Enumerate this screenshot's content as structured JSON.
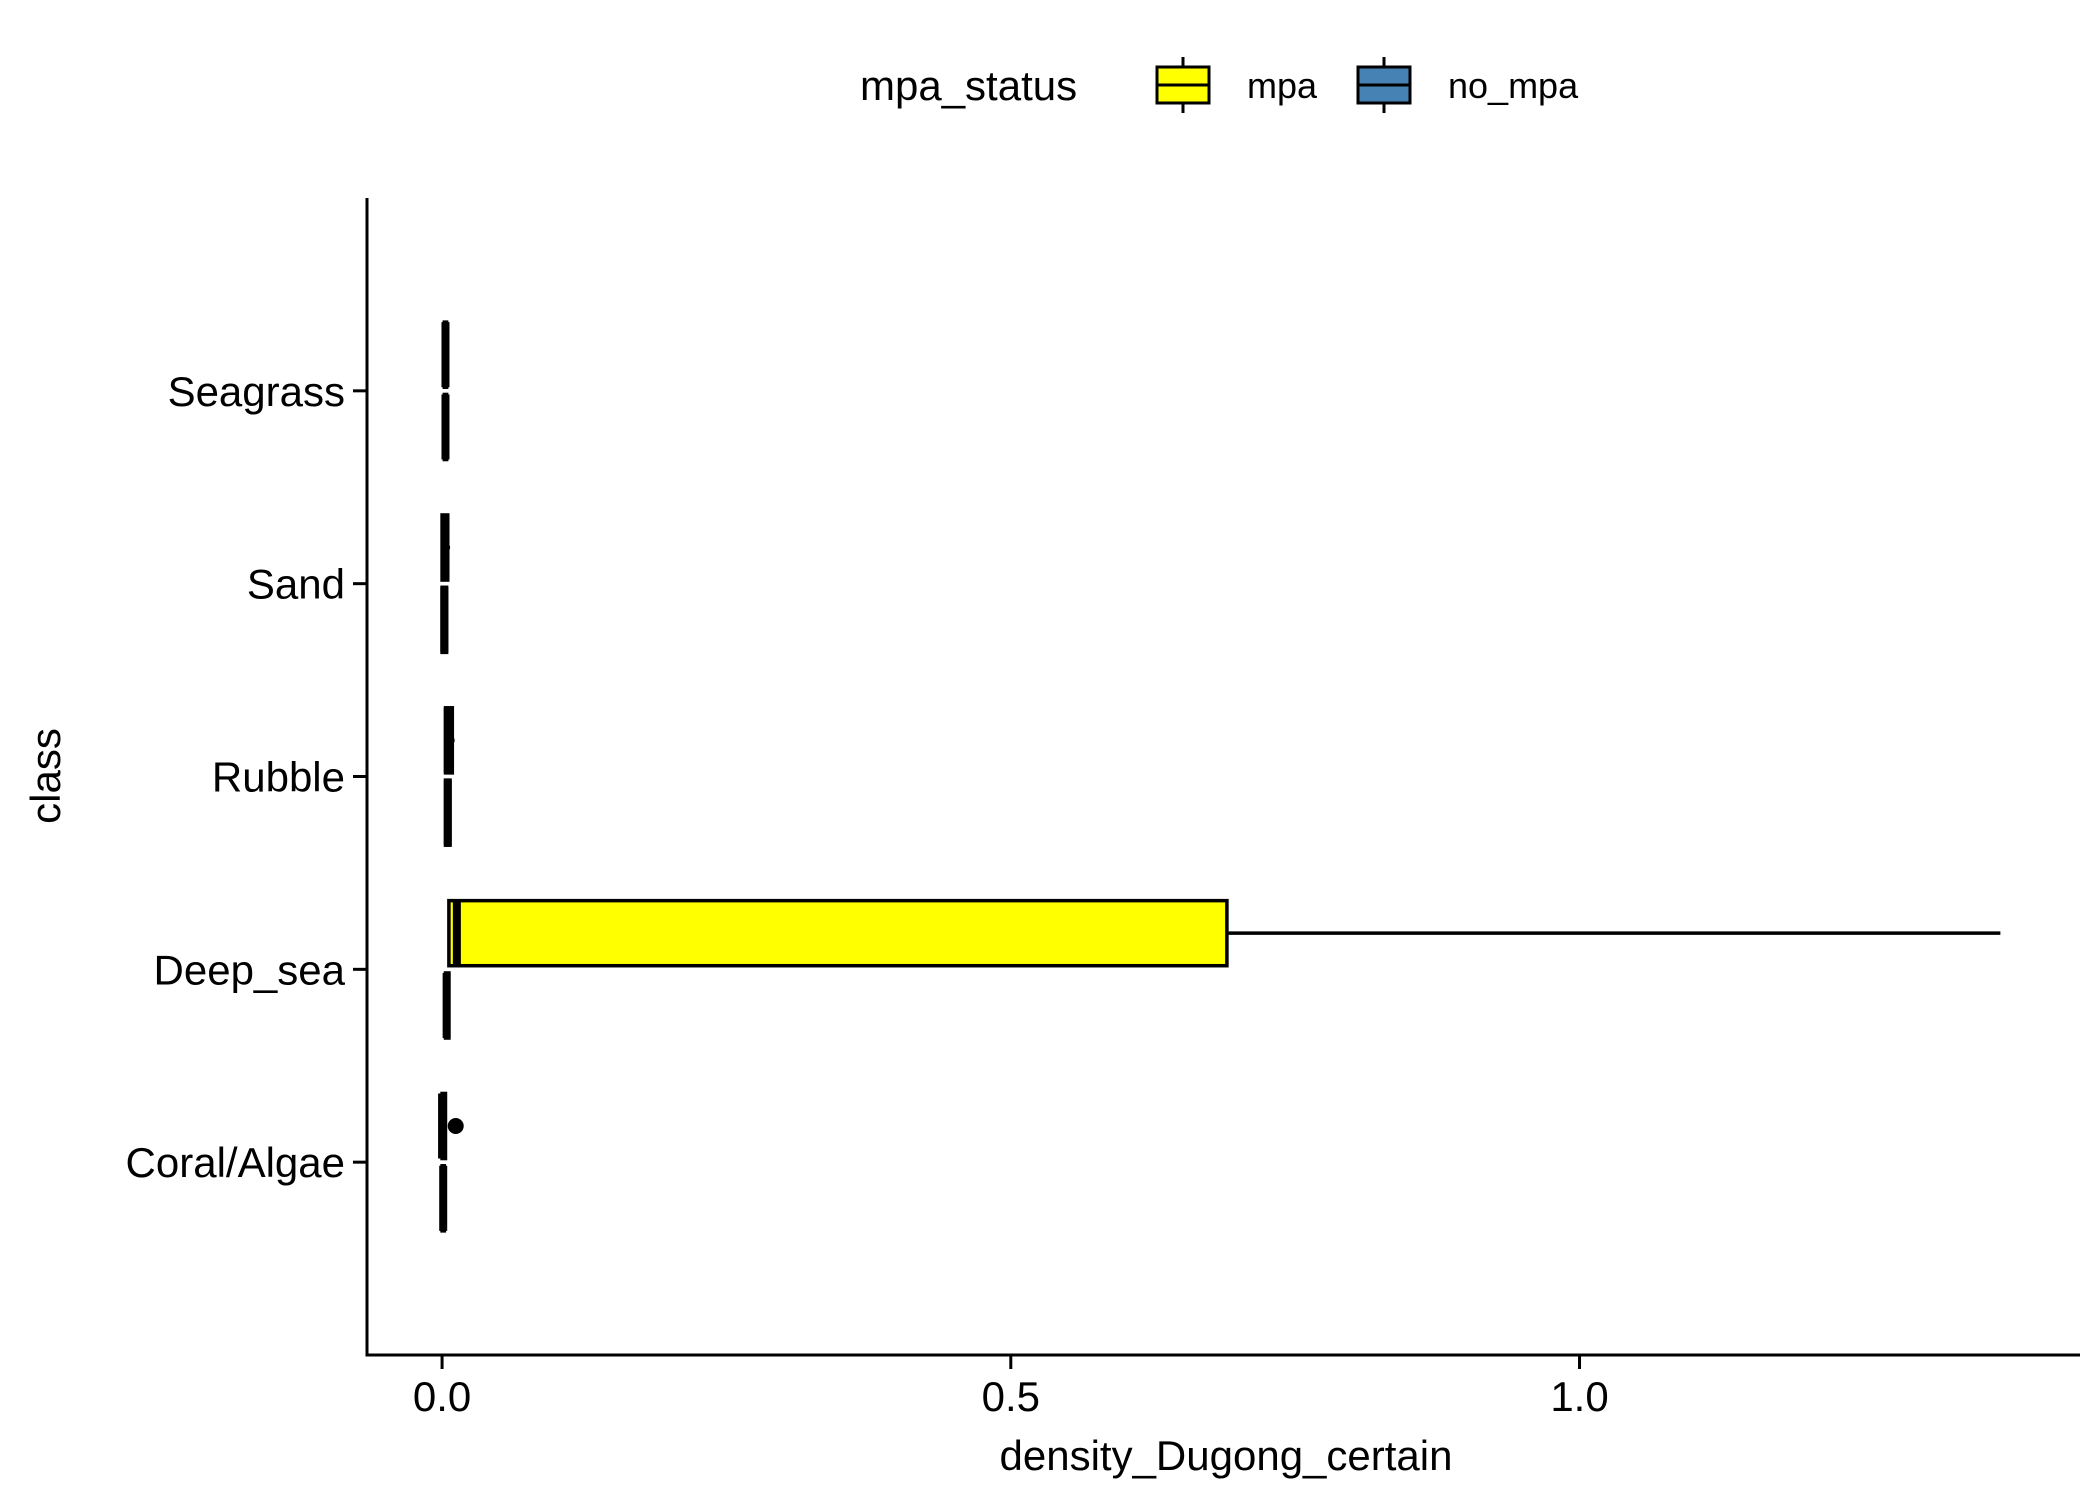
{
  "chart_data": {
    "type": "boxplot",
    "orientation": "horizontal",
    "xlabel": "density_Dugong_certain",
    "ylabel": "class",
    "xlim": [
      -0.066,
      1.44
    ],
    "x_ticks": [
      {
        "value": 0.0,
        "label": "0.0"
      },
      {
        "value": 0.5,
        "label": "0.5"
      },
      {
        "value": 1.0,
        "label": "1.0"
      }
    ],
    "categories": [
      "Coral/Algae",
      "Deep_sea",
      "Rubble",
      "Sand",
      "Seagrass"
    ],
    "legend": {
      "title": "mpa_status",
      "position": "top",
      "entries": [
        {
          "name": "mpa",
          "color": "#FFFF00"
        },
        {
          "name": "no_mpa",
          "color": "#4682B4"
        }
      ]
    },
    "series": [
      {
        "name": "mpa",
        "color": "#FFFF00",
        "boxes": [
          {
            "category": "Coral/Algae",
            "min": 0.0,
            "q1": 0.0,
            "median": 0.0,
            "q3": 0.003,
            "max": 0.003,
            "outliers": [
              0.012
            ]
          },
          {
            "category": "Deep_sea",
            "min": 0.006,
            "q1": 0.006,
            "median": 0.013,
            "q3": 0.69,
            "max": 1.37,
            "outliers": []
          },
          {
            "category": "Rubble",
            "min": 0.003,
            "q1": 0.003,
            "median": 0.005,
            "q3": 0.009,
            "max": 0.011,
            "outliers": []
          },
          {
            "category": "Sand",
            "min": 0.0,
            "q1": 0.0,
            "median": 0.003,
            "q3": 0.005,
            "max": 0.007,
            "outliers": []
          },
          {
            "category": "Seagrass",
            "min": 0.0,
            "q1": 0.002,
            "median": 0.003,
            "q3": 0.004,
            "max": 0.004,
            "outliers": []
          }
        ]
      },
      {
        "name": "no_mpa",
        "color": "#4682B4",
        "boxes": [
          {
            "category": "Coral/Algae",
            "min": 0.0,
            "q1": 0.0,
            "median": 0.001,
            "q3": 0.002,
            "max": 0.002,
            "outliers": []
          },
          {
            "category": "Deep_sea",
            "min": 0.002,
            "q1": 0.003,
            "median": 0.004,
            "q3": 0.006,
            "max": 0.006,
            "outliers": []
          },
          {
            "category": "Rubble",
            "min": 0.002,
            "q1": 0.003,
            "median": 0.005,
            "q3": 0.007,
            "max": 0.007,
            "outliers": []
          },
          {
            "category": "Sand",
            "min": 0.0,
            "q1": 0.0,
            "median": 0.002,
            "q3": 0.004,
            "max": 0.004,
            "outliers": []
          },
          {
            "category": "Seagrass",
            "min": 0.002,
            "q1": 0.002,
            "median": 0.003,
            "q3": 0.004,
            "max": 0.004,
            "outliers": []
          }
        ]
      }
    ],
    "grid": false
  }
}
